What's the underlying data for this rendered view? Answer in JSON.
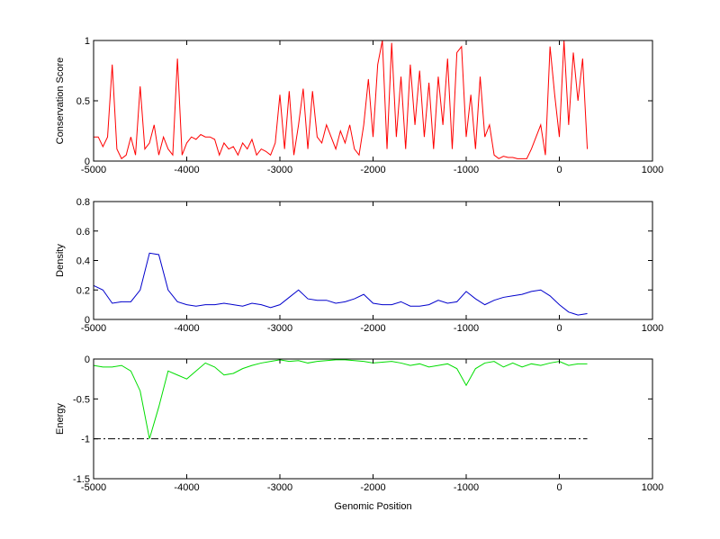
{
  "chart_data": [
    {
      "type": "line",
      "ylabel": "Conservation Score",
      "x": [
        -5000,
        -4950,
        -4900,
        -4850,
        -4800,
        -4750,
        -4700,
        -4650,
        -4600,
        -4550,
        -4500,
        -4450,
        -4400,
        -4350,
        -4300,
        -4250,
        -4200,
        -4150,
        -4100,
        -4050,
        -4000,
        -3950,
        -3900,
        -3850,
        -3800,
        -3750,
        -3700,
        -3650,
        -3600,
        -3550,
        -3500,
        -3450,
        -3400,
        -3350,
        -3300,
        -3250,
        -3200,
        -3150,
        -3100,
        -3050,
        -3000,
        -2950,
        -2900,
        -2850,
        -2800,
        -2750,
        -2700,
        -2650,
        -2600,
        -2550,
        -2500,
        -2450,
        -2400,
        -2350,
        -2300,
        -2250,
        -2200,
        -2150,
        -2100,
        -2050,
        -2000,
        -1950,
        -1900,
        -1850,
        -1800,
        -1750,
        -1700,
        -1650,
        -1600,
        -1550,
        -1500,
        -1450,
        -1400,
        -1350,
        -1300,
        -1250,
        -1200,
        -1150,
        -1100,
        -1050,
        -1000,
        -950,
        -900,
        -850,
        -800,
        -750,
        -700,
        -650,
        -600,
        -550,
        -500,
        -450,
        -400,
        -350,
        -300,
        -250,
        -200,
        -150,
        -100,
        -50,
        0,
        50,
        100,
        150,
        200,
        250,
        300
      ],
      "series": [
        {
          "color": "#ff0000",
          "values": [
            0.2,
            0.2,
            0.12,
            0.2,
            0.8,
            0.1,
            0.02,
            0.05,
            0.2,
            0.05,
            0.62,
            0.1,
            0.15,
            0.3,
            0.05,
            0.2,
            0.1,
            0.05,
            0.85,
            0.05,
            0.15,
            0.2,
            0.18,
            0.22,
            0.2,
            0.2,
            0.18,
            0.05,
            0.15,
            0.1,
            0.12,
            0.05,
            0.15,
            0.1,
            0.18,
            0.05,
            0.1,
            0.08,
            0.05,
            0.15,
            0.55,
            0.1,
            0.58,
            0.05,
            0.3,
            0.6,
            0.1,
            0.58,
            0.2,
            0.15,
            0.3,
            0.2,
            0.1,
            0.25,
            0.15,
            0.3,
            0.1,
            0.05,
            0.3,
            0.68,
            0.2,
            0.8,
            1,
            0.1,
            0.98,
            0.2,
            0.7,
            0.1,
            0.8,
            0.3,
            0.75,
            0.2,
            0.65,
            0.1,
            0.7,
            0.3,
            0.85,
            0.1,
            0.9,
            0.95,
            0.2,
            0.55,
            0.1,
            0.7,
            0.2,
            0.3,
            0.05,
            0.02,
            0.04,
            0.03,
            0.03,
            0.02,
            0.02,
            0.02,
            0.1,
            0.2,
            0.3,
            0.05,
            0.95,
            0.55,
            0.2,
            1,
            0.3,
            0.9,
            0.5,
            0.85,
            0.1
          ]
        }
      ],
      "xlim": [
        -5000,
        1000
      ],
      "xticks": [
        -5000,
        -4000,
        -3000,
        -2000,
        -1000,
        0,
        1000
      ],
      "ylim": [
        0,
        1
      ],
      "yticks": [
        0,
        0.5,
        1
      ]
    },
    {
      "type": "line",
      "ylabel": "Density",
      "x": [
        -5000,
        -4900,
        -4800,
        -4700,
        -4600,
        -4500,
        -4400,
        -4300,
        -4200,
        -4100,
        -4000,
        -3900,
        -3800,
        -3700,
        -3600,
        -3500,
        -3400,
        -3300,
        -3200,
        -3100,
        -3000,
        -2900,
        -2800,
        -2700,
        -2600,
        -2500,
        -2400,
        -2300,
        -2200,
        -2100,
        -2000,
        -1900,
        -1800,
        -1700,
        -1600,
        -1500,
        -1400,
        -1300,
        -1200,
        -1100,
        -1000,
        -900,
        -800,
        -700,
        -600,
        -500,
        -400,
        -300,
        -200,
        -100,
        0,
        100,
        200,
        300
      ],
      "series": [
        {
          "color": "#0000cc",
          "values": [
            0.23,
            0.2,
            0.11,
            0.12,
            0.12,
            0.2,
            0.45,
            0.44,
            0.2,
            0.12,
            0.1,
            0.09,
            0.1,
            0.1,
            0.11,
            0.1,
            0.09,
            0.11,
            0.1,
            0.08,
            0.1,
            0.15,
            0.2,
            0.14,
            0.13,
            0.13,
            0.11,
            0.12,
            0.14,
            0.17,
            0.11,
            0.1,
            0.1,
            0.12,
            0.09,
            0.09,
            0.1,
            0.13,
            0.11,
            0.12,
            0.19,
            0.14,
            0.1,
            0.13,
            0.15,
            0.16,
            0.17,
            0.19,
            0.2,
            0.16,
            0.1,
            0.05,
            0.03,
            0.04
          ]
        }
      ],
      "xlim": [
        -5000,
        1000
      ],
      "xticks": [
        -5000,
        -4000,
        -3000,
        -2000,
        -1000,
        0,
        1000
      ],
      "ylim": [
        0,
        0.8
      ],
      "yticks": [
        0,
        0.2,
        0.4,
        0.6,
        0.8
      ]
    },
    {
      "type": "line",
      "ylabel": "Energy",
      "xlabel": "Genomic Position",
      "x": [
        -5000,
        -4900,
        -4800,
        -4700,
        -4600,
        -4500,
        -4400,
        -4300,
        -4200,
        -4100,
        -4000,
        -3900,
        -3800,
        -3700,
        -3600,
        -3500,
        -3400,
        -3300,
        -3200,
        -3100,
        -3000,
        -2900,
        -2800,
        -2700,
        -2600,
        -2500,
        -2400,
        -2300,
        -2200,
        -2100,
        -2000,
        -1900,
        -1800,
        -1700,
        -1600,
        -1500,
        -1400,
        -1300,
        -1200,
        -1100,
        -1000,
        -900,
        -800,
        -700,
        -600,
        -500,
        -400,
        -300,
        -200,
        -100,
        0,
        100,
        200,
        300
      ],
      "series": [
        {
          "color": "#00dd00",
          "values": [
            -0.08,
            -0.1,
            -0.1,
            -0.08,
            -0.15,
            -0.4,
            -1,
            -0.6,
            -0.15,
            -0.2,
            -0.25,
            -0.15,
            -0.05,
            -0.1,
            -0.2,
            -0.18,
            -0.12,
            -0.08,
            -0.05,
            -0.03,
            -0.01,
            -0.03,
            -0.02,
            -0.05,
            -0.03,
            -0.02,
            -0.01,
            -0.01,
            -0.02,
            -0.03,
            -0.05,
            -0.04,
            -0.03,
            -0.05,
            -0.08,
            -0.06,
            -0.1,
            -0.08,
            -0.06,
            -0.12,
            -0.33,
            -0.12,
            -0.05,
            -0.03,
            -0.1,
            -0.05,
            -0.1,
            -0.06,
            -0.08,
            -0.05,
            -0.03,
            -0.08,
            -0.06,
            -0.06
          ]
        }
      ],
      "hline": {
        "y": -1,
        "x": [
          -5000,
          300
        ],
        "color": "#000000"
      },
      "xlim": [
        -5000,
        1000
      ],
      "xticks": [
        -5000,
        -4000,
        -3000,
        -2000,
        -1000,
        0,
        1000
      ],
      "ylim": [
        -1.5,
        0
      ],
      "yticks": [
        -1.5,
        -1,
        -0.5,
        0
      ]
    }
  ]
}
